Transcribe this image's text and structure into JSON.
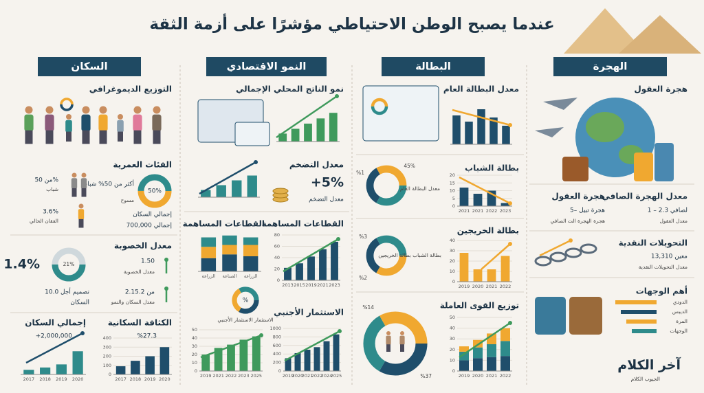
{
  "title": "عندما يصبح الوطن الاحتياطي مؤشرًا على أزمة الثقة",
  "population": {
    "header": "السكان",
    "demographics": "التوزيع الديموغرافي",
    "age_groups": {
      "title": "الفئات العمرية",
      "donut": "50%",
      "note": "أكثر من 50% شباب",
      "note_sub": "مسوح",
      "stat1": "من 50%",
      "stat1_label": "شباب",
      "stat2": "3.6%",
      "stat2_label": "الفقان الحالي",
      "total": "إجمالي السكان",
      "total_value": "إجمالي 700,000"
    },
    "fertility": {
      "title": "معدل الخصوبة",
      "big": "1.4%",
      "donut": "21%",
      "rate": "1.50",
      "rate_label": "معدل الخصوبة",
      "growth": "2.15.2 من",
      "growth_label": "معدل السكان والنمو",
      "design": "10.0 تصميم أجل",
      "design_label": "السكان"
    },
    "total": {
      "title": "إجمالي السكان",
      "label": "+2,000,000",
      "chart": {
        "type": "bar",
        "categories": [
          "2017",
          "2018",
          "2019",
          "2020"
        ],
        "values": [
          6,
          9,
          13,
          30
        ],
        "ylim": [
          0,
          40
        ],
        "color": "#2e8b8b"
      }
    },
    "density": {
      "title": "الكثافة السكانية",
      "label": "%27,3",
      "chart": {
        "type": "bar",
        "categories": [
          "2017",
          "2018",
          "2019",
          "2020"
        ],
        "values": [
          90,
          150,
          200,
          300
        ],
        "ylim": [
          0,
          400
        ],
        "yticks": [
          0,
          100,
          200,
          300,
          400
        ],
        "color": "#1f4e6b"
      }
    }
  },
  "economy": {
    "header": "النمو الاقتصادي",
    "gdp": {
      "title": "نمو الناتج المحلي الإجمالي",
      "chart": {
        "type": "bar",
        "values": [
          20,
          32,
          45,
          58,
          72
        ],
        "ylim": [
          0,
          100
        ],
        "color": "#3f9a5c"
      }
    },
    "inflation": {
      "title": "معدل التضخم",
      "value": "+5%",
      "label": "معدل التضخم",
      "chart": {
        "type": "bar",
        "values": [
          15,
          25,
          35,
          45
        ],
        "ylim": [
          0,
          60
        ],
        "color": "#2e8b8b"
      }
    },
    "sectors_stack": {
      "title": "القطاعات المساهمة",
      "chart": {
        "type": "stacked_bar",
        "categories": [
          "الزراعة",
          "الصناعة",
          "الزراعة"
        ],
        "ylim": [
          0,
          100
        ],
        "series": [
          {
            "color": "#1f4e6b",
            "values": [
              35,
              45,
              40
            ]
          },
          {
            "color": "#f0a830",
            "values": [
              30,
              25,
              30
            ]
          },
          {
            "color": "#2e8b8b",
            "values": [
              25,
              25,
              20
            ]
          }
        ]
      }
    },
    "sectors_line": {
      "title": "القطاعات المساهمة",
      "chart": {
        "type": "bar",
        "categories": [
          "2013",
          "2015",
          "2019",
          "2021",
          "2023"
        ],
        "values": [
          22,
          30,
          42,
          55,
          68
        ],
        "ylim": [
          0,
          80
        ],
        "yticks": [
          0,
          20,
          40,
          60,
          80
        ],
        "color": "#1f4e6b"
      }
    },
    "investment_share": {
      "donut": "%",
      "label": "الاستثمار الاستثمار الأجنبي"
    },
    "investment": {
      "title": "الاستثمار الأجنبي",
      "chart": {
        "type": "bar",
        "categories": [
          "2019",
          "2020",
          "2021",
          "2022",
          "2024",
          "2025"
        ],
        "values": [
          300,
          420,
          500,
          560,
          700,
          860
        ],
        "ylim": [
          0,
          1000
        ],
        "yticks": [
          0,
          200,
          400,
          600,
          800,
          1000
        ],
        "color": "#1f4e6b"
      }
    },
    "growth": {
      "chart": {
        "type": "bar",
        "categories": [
          "2019",
          "2021",
          "2022",
          "2023",
          "2025"
        ],
        "values": [
          20,
          28,
          32,
          38,
          42
        ],
        "ylim": [
          0,
          50
        ],
        "yticks": [
          0,
          10,
          20,
          30,
          40,
          50
        ],
        "color": "#3f9a5c"
      }
    }
  },
  "unemployment": {
    "header": "البطالة",
    "general": {
      "title": "معدل البطالة العام",
      "chart": {
        "type": "bar",
        "values": [
          28,
          22,
          34,
          26,
          18
        ],
        "ylim": [
          0,
          40
        ],
        "color": "#1f4e6b"
      }
    },
    "youth": {
      "title": "بطالة الشباب",
      "donut_a": "45%",
      "donut_b": "%1",
      "donut_label": "معدل البطالة العام",
      "chart": {
        "type": "bar",
        "categories": [
          "2021",
          "2021",
          "2022",
          "2023"
        ],
        "values": [
          12,
          8,
          10,
          2
        ],
        "ylim": [
          0,
          20
        ],
        "yticks": [
          0,
          5,
          10,
          15,
          20
        ],
        "color": "#1f4e6b"
      }
    },
    "graduates": {
      "title": "بطالة الخريجين",
      "donut_a": "%3",
      "donut_b": "%2",
      "donut_label": "بطالة الشباب بطالة الخريجين",
      "chart": {
        "type": "bar",
        "categories": [
          "2019",
          "2020",
          "2021",
          "2022"
        ],
        "values": [
          28,
          12,
          12,
          25
        ],
        "ylim": [
          0,
          40
        ],
        "yticks": [
          0,
          10,
          20,
          30,
          40
        ],
        "color": "#f0a830"
      }
    },
    "workforce": {
      "title": "توزيع القوى العاملة",
      "donut_a": "%14",
      "donut_b": "%37",
      "chart": {
        "type": "stacked_bar",
        "categories": [
          "2019",
          "2020",
          "2021",
          "2022"
        ],
        "ylim": [
          0,
          50
        ],
        "yticks": [
          0,
          10,
          20,
          30,
          40,
          50
        ],
        "series": [
          {
            "color": "#1f4e6b",
            "values": [
              10,
              12,
              13,
              14
            ]
          },
          {
            "color": "#2e8b8b",
            "values": [
              8,
              10,
              12,
              14
            ]
          },
          {
            "color": "#f0a830",
            "values": [
              5,
              7,
              10,
              12
            ]
          }
        ]
      }
    }
  },
  "migration": {
    "header": "الهجرة",
    "brain_drain": "هجرة العقول",
    "net": {
      "title": "معدل الهجرة الصافي",
      "value": "1 – 2.3 لصافي",
      "label": "معدل العقول"
    },
    "brains": {
      "title": "هجرة العقول",
      "value": "5– هجرة تبيل",
      "label": "هجرة الهجرة الت الصافي"
    },
    "remittances": {
      "title": "التحويلات النقدية",
      "value": "13,310 معين",
      "label": "معدل التحويلات النقدية"
    },
    "destinations": {
      "title": "أهم الوجهات",
      "items": [
        "الدودي",
        "الديبس",
        "المرة",
        "الوجهات"
      ],
      "colors": [
        "#f0a830",
        "#1f4e6b",
        "#f0a830",
        "#2e8b8b"
      ]
    }
  },
  "logo": {
    "name": "آخر الكلام",
    "sub": "الجيوب الكلام"
  }
}
